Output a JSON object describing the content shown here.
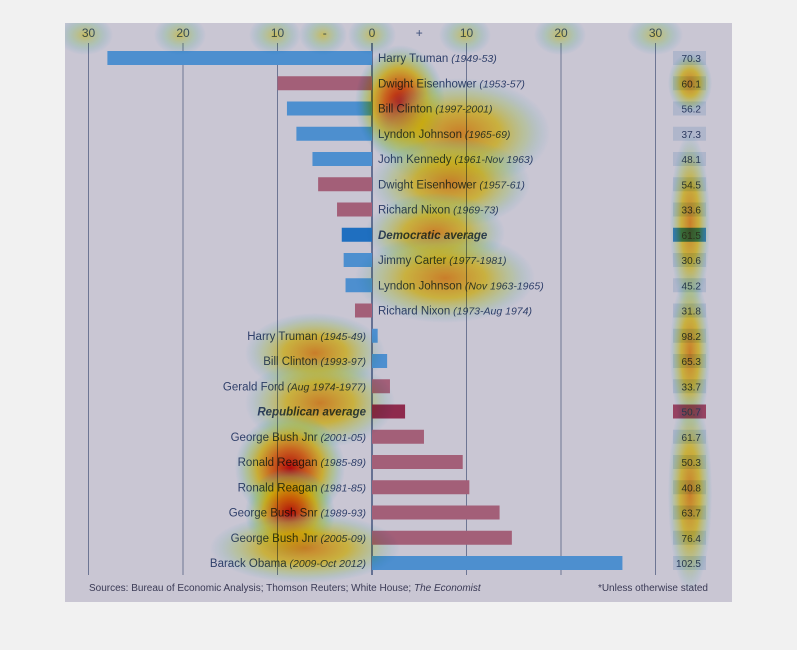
{
  "chart_data": {
    "type": "bar",
    "orientation": "horizontal-diverging",
    "x_ticks": [
      "30",
      "20",
      "10",
      "-",
      "0",
      "+",
      "10",
      "20",
      "30"
    ],
    "x_tick_values": [
      -30,
      -20,
      -10,
      -5,
      0,
      5,
      10,
      20,
      30
    ],
    "xlim": [
      -30,
      30
    ],
    "grid": true,
    "rows": [
      {
        "name": "Harry Truman",
        "years": "(1949-53)",
        "value": -28,
        "side": "left",
        "color": "#4d8fcf",
        "end_value": "70.3",
        "italic": false
      },
      {
        "name": "Dwight Eisenhower",
        "years": "(1953-57)",
        "value": -10,
        "side": "left",
        "color": "#a35f78",
        "end_value": "60.1",
        "italic": false
      },
      {
        "name": "Bill Clinton",
        "years": "(1997-2001)",
        "value": -9,
        "side": "left",
        "color": "#4d8fcf",
        "end_value": "56.2",
        "italic": false
      },
      {
        "name": "Lyndon Johnson",
        "years": "(1965-69)",
        "value": -8,
        "side": "left",
        "color": "#4d8fcf",
        "end_value": "37.3",
        "italic": false
      },
      {
        "name": "John Kennedy",
        "years": "(1961-Nov 1963)",
        "value": -6.3,
        "side": "left",
        "color": "#4d8fcf",
        "end_value": "48.1",
        "italic": false
      },
      {
        "name": "Dwight Eisenhower",
        "years": "(1957-61)",
        "value": -5.7,
        "side": "left",
        "color": "#a35f78",
        "end_value": "54.5",
        "italic": false
      },
      {
        "name": "Richard Nixon",
        "years": "(1969-73)",
        "value": -3.7,
        "side": "left",
        "color": "#a35f78",
        "end_value": "33.6",
        "italic": false
      },
      {
        "name": "Democratic average",
        "years": "",
        "value": -3.2,
        "side": "left",
        "color": "#1f6fc0",
        "end_value": "61.5",
        "italic": true
      },
      {
        "name": "Jimmy Carter",
        "years": "(1977-1981)",
        "value": -3.0,
        "side": "left",
        "color": "#4d8fcf",
        "end_value": "30.6",
        "italic": false
      },
      {
        "name": "Lyndon Johnson",
        "years": "(Nov 1963-1965)",
        "value": -2.8,
        "side": "left",
        "color": "#4d8fcf",
        "end_value": "45.2",
        "italic": false
      },
      {
        "name": "Richard Nixon",
        "years": "(1973-Aug 1974)",
        "value": -1.8,
        "side": "left",
        "color": "#a35f78",
        "end_value": "31.8",
        "italic": false
      },
      {
        "name": "Harry Truman",
        "years": "(1945-49)",
        "value": 0.6,
        "side": "right",
        "color": "#4d8fcf",
        "end_value": "98.2",
        "italic": false
      },
      {
        "name": "Bill Clinton",
        "years": "(1993-97)",
        "value": 1.6,
        "side": "right",
        "color": "#4d8fcf",
        "end_value": "65.3",
        "italic": false
      },
      {
        "name": "Gerald Ford",
        "years": "(Aug 1974-1977)",
        "value": 1.9,
        "side": "right",
        "color": "#a35f78",
        "end_value": "33.7",
        "italic": false
      },
      {
        "name": "Republican average",
        "years": "",
        "value": 3.5,
        "side": "right",
        "color": "#8e2a4d",
        "end_value": "50.7",
        "italic": true
      },
      {
        "name": "George Bush Jnr",
        "years": "(2001-05)",
        "value": 5.5,
        "side": "right",
        "color": "#a35f78",
        "end_value": "61.7",
        "italic": false
      },
      {
        "name": "Ronald Reagan",
        "years": "(1985-89)",
        "value": 9.6,
        "side": "right",
        "color": "#a35f78",
        "end_value": "50.3",
        "italic": false
      },
      {
        "name": "Ronald Reagan",
        "years": "(1981-85)",
        "value": 10.3,
        "side": "right",
        "color": "#a35f78",
        "end_value": "40.8",
        "italic": false
      },
      {
        "name": "George Bush Snr",
        "years": "(1989-93)",
        "value": 13.5,
        "side": "right",
        "color": "#a35f78",
        "end_value": "63.7",
        "italic": false
      },
      {
        "name": "George Bush Jnr",
        "years": "(2005-09)",
        "value": 14.8,
        "side": "right",
        "color": "#a35f78",
        "end_value": "76.4",
        "italic": false
      },
      {
        "name": "Barack Obama",
        "years": "(2009-Oct 2012)",
        "value": 26.5,
        "side": "right",
        "color": "#4d8fcf",
        "end_value": "102.5",
        "italic": false
      }
    ],
    "source": "Sources: Bureau of Economic Analysis; Thomson Reuters; White House; ",
    "source_italic": "The Economist",
    "footnote": "*Unless otherwise stated",
    "heatmap_overlay": true
  }
}
